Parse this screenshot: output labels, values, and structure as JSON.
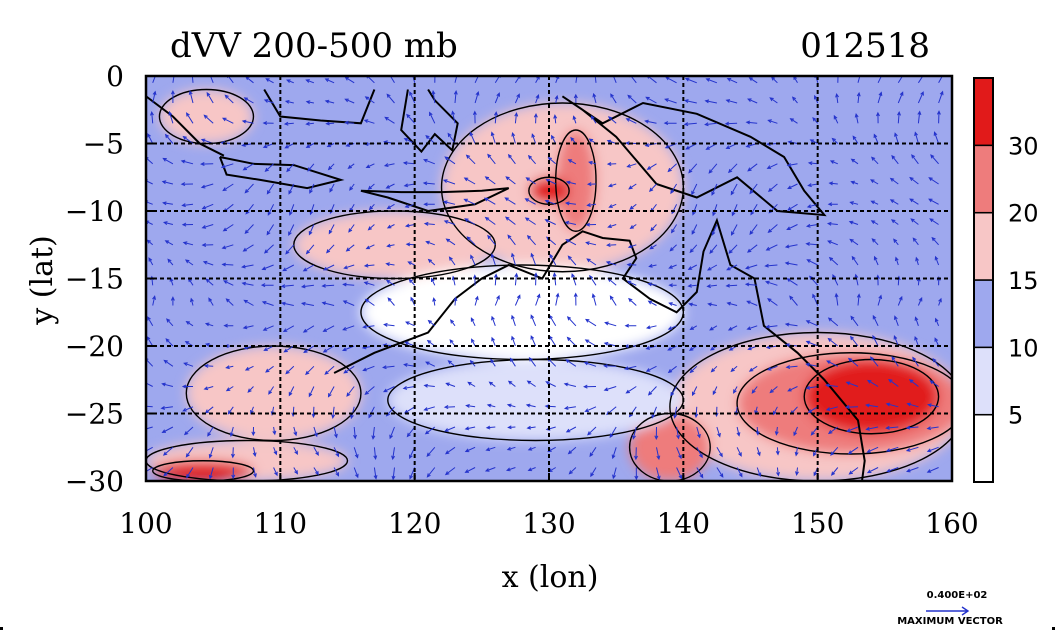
{
  "chart_data": {
    "type": "heatmap",
    "subtype": "filled-contour-with-vectors",
    "title": "dVV 200-500 mb",
    "date_label": "012518",
    "xlabel": "x (lon)",
    "ylabel": "y (lat)",
    "xlim": [
      100,
      160
    ],
    "ylim": [
      -30,
      0
    ],
    "x_ticks": [
      100,
      110,
      120,
      130,
      140,
      150,
      160
    ],
    "y_ticks": [
      0,
      -5,
      -10,
      -15,
      -20,
      -25,
      -30
    ],
    "x_tick_labels": [
      "100",
      "110",
      "120",
      "130",
      "140",
      "150",
      "160"
    ],
    "y_tick_labels": [
      "0",
      "−5",
      "−10",
      "−15",
      "−20",
      "−25",
      "−30"
    ],
    "grid": true,
    "grid_x": [
      110,
      120,
      130,
      140,
      150
    ],
    "grid_y": [
      -5,
      -10,
      -15,
      -20,
      -25
    ],
    "colorbar": {
      "placement": "right",
      "levels": [
        0,
        5,
        10,
        15,
        20,
        30,
        40
      ],
      "tick_labels": [
        "5",
        "10",
        "15",
        "20",
        "30"
      ],
      "colors": [
        "#ffffff",
        "#dde0fa",
        "#9ea8ee",
        "#f7c6c6",
        "#ee7c7c",
        "#e11a1a"
      ]
    },
    "vector_legend": {
      "magnitude_label": "0.400E+02",
      "caption": "MAXIMUM VECTOR",
      "color": "#2433cc"
    },
    "regions": [
      {
        "lon": [
          122.0,
          140.0
        ],
        "lat": [
          -2.0,
          -14.5
        ],
        "value": 16
      },
      {
        "lon": [
          130.5,
          133.5
        ],
        "lat": [
          -4.0,
          -11.5
        ],
        "value": 22
      },
      {
        "lon": [
          128.5,
          131.5
        ],
        "lat": [
          -7.5,
          -9.5
        ],
        "value": 33
      },
      {
        "lon": [
          101.0,
          108.0
        ],
        "lat": [
          -1.0,
          -5.0
        ],
        "value": 17
      },
      {
        "lon": [
          111.0,
          126.0
        ],
        "lat": [
          -10.0,
          -15.0
        ],
        "value": 16
      },
      {
        "lon": [
          139.0,
          161.0
        ],
        "lat": [
          -19.0,
          -30.0
        ],
        "value": 16
      },
      {
        "lon": [
          144.0,
          161.0
        ],
        "lat": [
          -20.5,
          -28.0
        ],
        "value": 22
      },
      {
        "lon": [
          149.0,
          159.0
        ],
        "lat": [
          -21.0,
          -26.5
        ],
        "value": 34
      },
      {
        "lon": [
          100.0,
          115.0
        ],
        "lat": [
          -27.0,
          -30.0
        ],
        "value": 18
      },
      {
        "lon": [
          100.5,
          108.0
        ],
        "lat": [
          -28.5,
          -30.0
        ],
        "value": 33
      },
      {
        "lon": [
          103.0,
          116.0
        ],
        "lat": [
          -20.0,
          -27.0
        ],
        "value": 16
      },
      {
        "lon": [
          136.0,
          142.0
        ],
        "lat": [
          -25.0,
          -30.0
        ],
        "value": 22
      },
      {
        "lon": [
          116.0,
          140.0
        ],
        "lat": [
          -14.0,
          -21.0
        ],
        "value": 3
      },
      {
        "lon": [
          118.0,
          140.0
        ],
        "lat": [
          -21.0,
          -27.0
        ],
        "value": 6
      }
    ],
    "series": []
  }
}
